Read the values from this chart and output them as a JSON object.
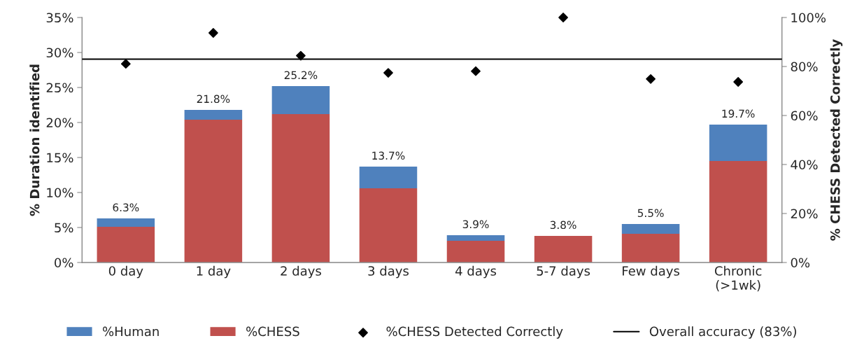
{
  "chart_data": {
    "type": "bar",
    "stacked": true,
    "categories": [
      "0 day",
      "1 day",
      "2 days",
      "3 days",
      "4 days",
      "5-7 days",
      "Few days",
      "Chronic\n(>1wk)"
    ],
    "series": [
      {
        "name": "%CHESS",
        "color": "#c0504d",
        "values": [
          5.1,
          20.4,
          21.2,
          10.6,
          3.1,
          3.8,
          4.1,
          14.5
        ]
      },
      {
        "name": "%Human",
        "color": "#4f81bd",
        "values": [
          1.2,
          1.4,
          4.0,
          3.1,
          0.8,
          0.0,
          1.4,
          5.2
        ]
      },
      {
        "name": "%CHESS Detected Correctly",
        "type": "scatter",
        "axis": "y2",
        "color": "#000000",
        "marker": "diamond",
        "values": [
          81.1,
          93.7,
          84.4,
          77.4,
          78.1,
          100,
          74.9,
          73.7
        ]
      }
    ],
    "totals": [
      "6.3%",
      "21.8%",
      "25.2%",
      "13.7%",
      "3.9%",
      "3.8%",
      "5.5%",
      "19.7%"
    ],
    "ylabel": "% Duration identified",
    "y2label": "% CHESS Detected Correctly",
    "ylim": [
      0,
      35
    ],
    "yticks": [
      {
        "value": 0,
        "label": "0%"
      },
      {
        "value": 5,
        "label": "5%"
      },
      {
        "value": 10,
        "label": "10%"
      },
      {
        "value": 15,
        "label": "15%"
      },
      {
        "value": 20,
        "label": "20%"
      },
      {
        "value": 25,
        "label": "25%"
      },
      {
        "value": 30,
        "label": "30%"
      },
      {
        "value": 35,
        "label": "35%"
      }
    ],
    "y2lim": [
      0,
      100
    ],
    "y2ticks": [
      {
        "value": 0,
        "label": "0%"
      },
      {
        "value": 20,
        "label": "20%"
      },
      {
        "value": 40,
        "label": "40%"
      },
      {
        "value": 60,
        "label": "60%"
      },
      {
        "value": 80,
        "label": "80%"
      },
      {
        "value": 100,
        "label": "100%"
      }
    ],
    "ref_lines": [
      {
        "axis": "y2",
        "value": 83,
        "label": "Overall accuracy (83%)",
        "color": "#000000",
        "line_style": "solid"
      }
    ],
    "grid": false,
    "legend": "bottom"
  }
}
